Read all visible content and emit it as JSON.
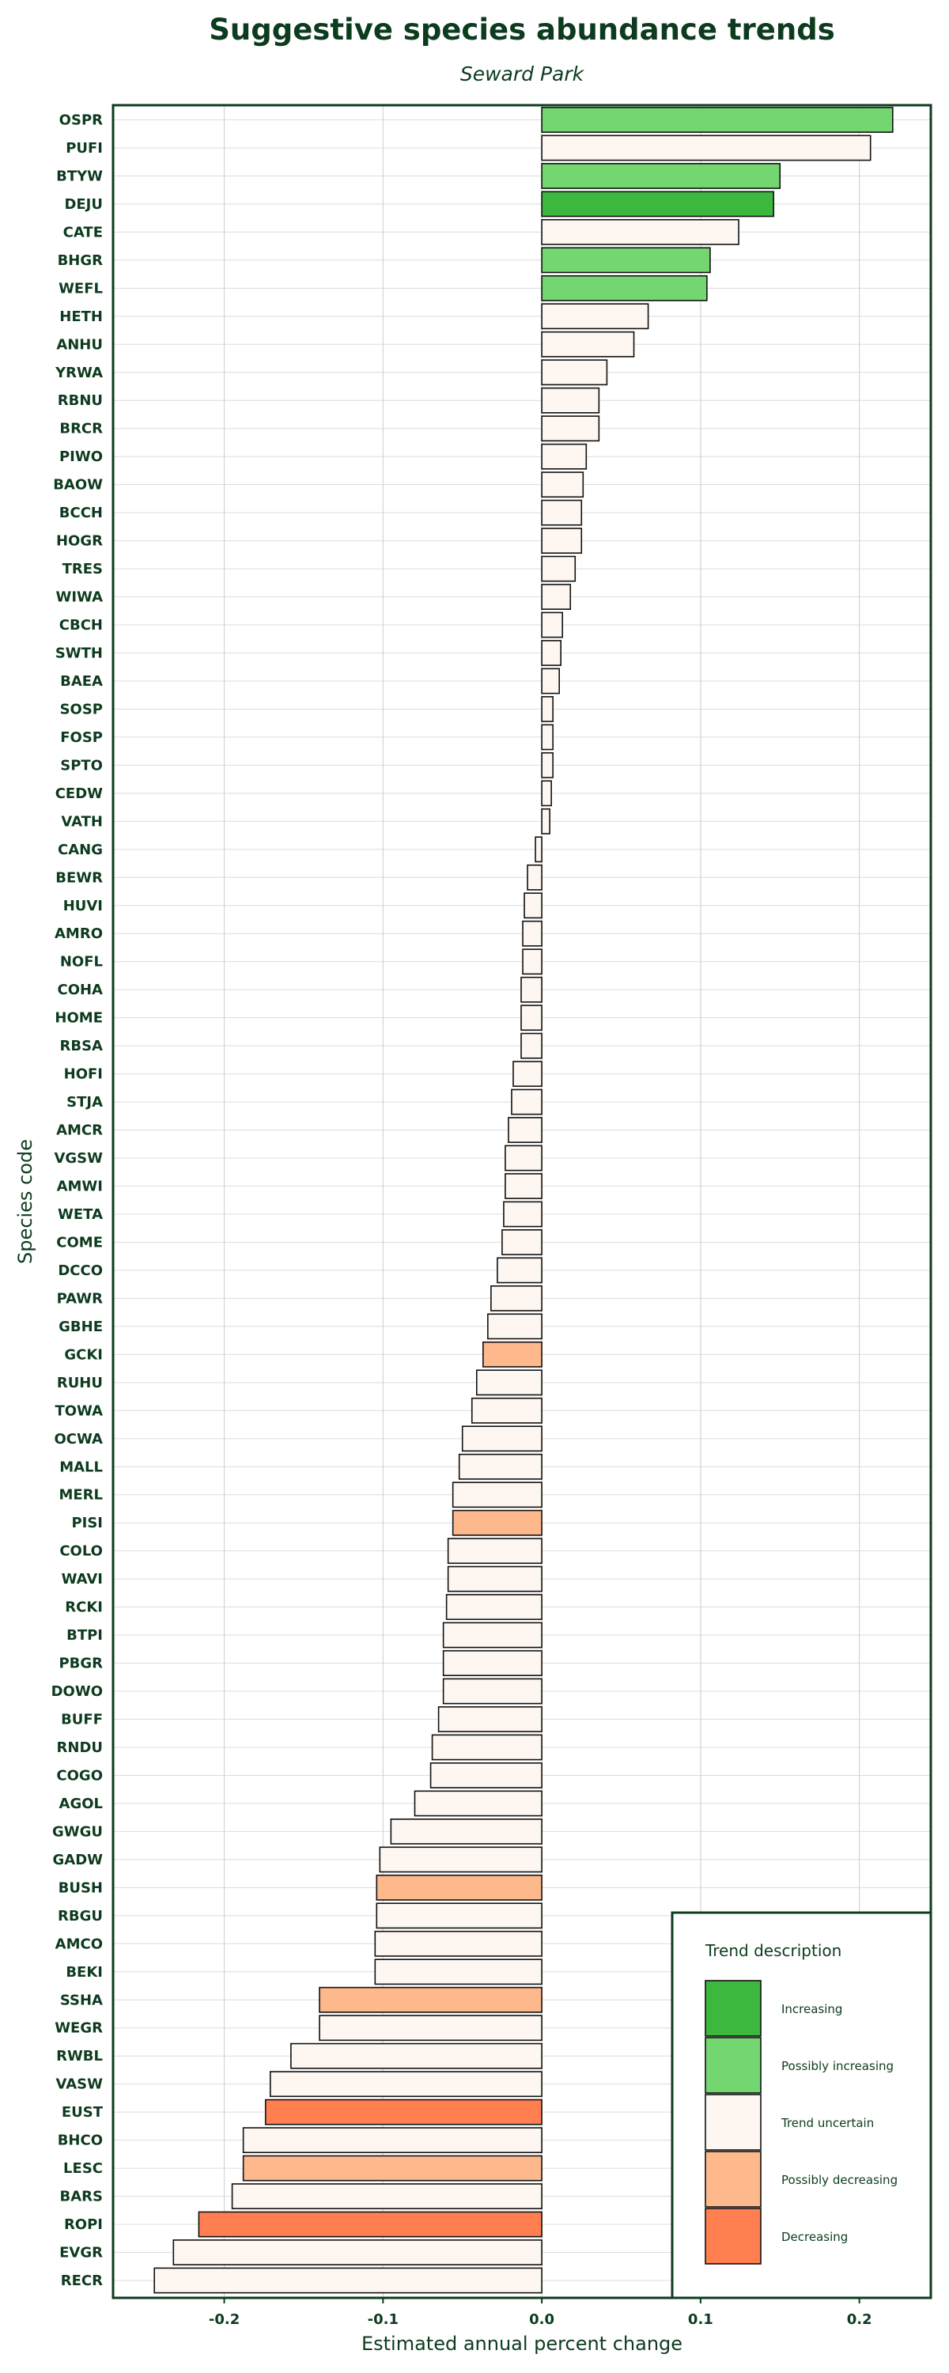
{
  "chart_data": {
    "type": "bar",
    "orientation": "horizontal",
    "title": "Suggestive species abundance trends",
    "subtitle": "Seward Park",
    "xlabel": "Estimated annual percent change",
    "ylabel": "Species code",
    "xlim": [
      -0.27,
      0.245
    ],
    "xticks": [
      -0.2,
      -0.1,
      0.0,
      0.1,
      0.2
    ],
    "xtick_labels": [
      "-0.2",
      "-0.1",
      "0.0",
      "0.1",
      "0.2"
    ],
    "grid": true,
    "legend": {
      "title": "Trend description",
      "placement": "bottom-right",
      "entries": [
        {
          "label": "Increasing",
          "color": "#3bb83d"
        },
        {
          "label": "Possibly increasing",
          "color": "#74d671"
        },
        {
          "label": "Trend uncertain",
          "color": "#fdf6f1"
        },
        {
          "label": "Possibly decreasing",
          "color": "#fdb88b"
        },
        {
          "label": "Decreasing",
          "color": "#ff7f50"
        }
      ]
    },
    "categories": [
      "OSPR",
      "PUFI",
      "BTYW",
      "DEJU",
      "CATE",
      "BHGR",
      "WEFL",
      "HETH",
      "ANHU",
      "YRWA",
      "RBNU",
      "BRCR",
      "PIWO",
      "BAOW",
      "BCCH",
      "HOGR",
      "TRES",
      "WIWA",
      "CBCH",
      "SWTH",
      "BAEA",
      "SOSP",
      "FOSP",
      "SPTO",
      "CEDW",
      "VATH",
      "CANG",
      "BEWR",
      "HUVI",
      "AMRO",
      "NOFL",
      "COHA",
      "HOME",
      "RBSA",
      "HOFI",
      "STJA",
      "AMCR",
      "VGSW",
      "AMWI",
      "WETA",
      "COME",
      "DCCO",
      "PAWR",
      "GBHE",
      "GCKI",
      "RUHU",
      "TOWA",
      "OCWA",
      "MALL",
      "MERL",
      "PISI",
      "COLO",
      "WAVI",
      "RCKI",
      "BTPI",
      "PBGR",
      "DOWO",
      "BUFF",
      "RNDU",
      "COGO",
      "AGOL",
      "GWGU",
      "GADW",
      "BUSH",
      "RBGU",
      "AMCO",
      "BEKI",
      "SSHA",
      "WEGR",
      "RWBL",
      "VASW",
      "EUST",
      "BHCO",
      "LESC",
      "BARS",
      "ROPI",
      "EVGR",
      "RECR"
    ],
    "values": [
      0.221,
      0.207,
      0.15,
      0.146,
      0.124,
      0.106,
      0.104,
      0.067,
      0.058,
      0.041,
      0.036,
      0.036,
      0.028,
      0.026,
      0.025,
      0.025,
      0.021,
      0.018,
      0.013,
      0.012,
      0.011,
      0.007,
      0.007,
      0.007,
      0.006,
      0.005,
      -0.004,
      -0.009,
      -0.011,
      -0.012,
      -0.012,
      -0.013,
      -0.013,
      -0.013,
      -0.018,
      -0.019,
      -0.021,
      -0.023,
      -0.023,
      -0.024,
      -0.025,
      -0.028,
      -0.032,
      -0.034,
      -0.037,
      -0.041,
      -0.044,
      -0.05,
      -0.052,
      -0.056,
      -0.056,
      -0.059,
      -0.059,
      -0.06,
      -0.062,
      -0.062,
      -0.062,
      -0.065,
      -0.069,
      -0.07,
      -0.08,
      -0.095,
      -0.102,
      -0.104,
      -0.104,
      -0.105,
      -0.105,
      -0.14,
      -0.14,
      -0.158,
      -0.171,
      -0.174,
      -0.188,
      -0.188,
      -0.195,
      -0.216,
      -0.232,
      -0.244
    ],
    "trend": [
      "Possibly increasing",
      "Trend uncertain",
      "Possibly increasing",
      "Increasing",
      "Trend uncertain",
      "Possibly increasing",
      "Possibly increasing",
      "Trend uncertain",
      "Trend uncertain",
      "Trend uncertain",
      "Trend uncertain",
      "Trend uncertain",
      "Trend uncertain",
      "Trend uncertain",
      "Trend uncertain",
      "Trend uncertain",
      "Trend uncertain",
      "Trend uncertain",
      "Trend uncertain",
      "Trend uncertain",
      "Trend uncertain",
      "Trend uncertain",
      "Trend uncertain",
      "Trend uncertain",
      "Trend uncertain",
      "Trend uncertain",
      "Trend uncertain",
      "Trend uncertain",
      "Trend uncertain",
      "Trend uncertain",
      "Trend uncertain",
      "Trend uncertain",
      "Trend uncertain",
      "Trend uncertain",
      "Trend uncertain",
      "Trend uncertain",
      "Trend uncertain",
      "Trend uncertain",
      "Trend uncertain",
      "Trend uncertain",
      "Trend uncertain",
      "Trend uncertain",
      "Trend uncertain",
      "Trend uncertain",
      "Possibly decreasing",
      "Trend uncertain",
      "Trend uncertain",
      "Trend uncertain",
      "Trend uncertain",
      "Trend uncertain",
      "Possibly decreasing",
      "Trend uncertain",
      "Trend uncertain",
      "Trend uncertain",
      "Trend uncertain",
      "Trend uncertain",
      "Trend uncertain",
      "Trend uncertain",
      "Trend uncertain",
      "Trend uncertain",
      "Trend uncertain",
      "Trend uncertain",
      "Trend uncertain",
      "Possibly decreasing",
      "Trend uncertain",
      "Trend uncertain",
      "Trend uncertain",
      "Possibly decreasing",
      "Trend uncertain",
      "Trend uncertain",
      "Trend uncertain",
      "Decreasing",
      "Trend uncertain",
      "Possibly decreasing",
      "Trend uncertain",
      "Decreasing",
      "Trend uncertain",
      "Trend uncertain"
    ]
  }
}
